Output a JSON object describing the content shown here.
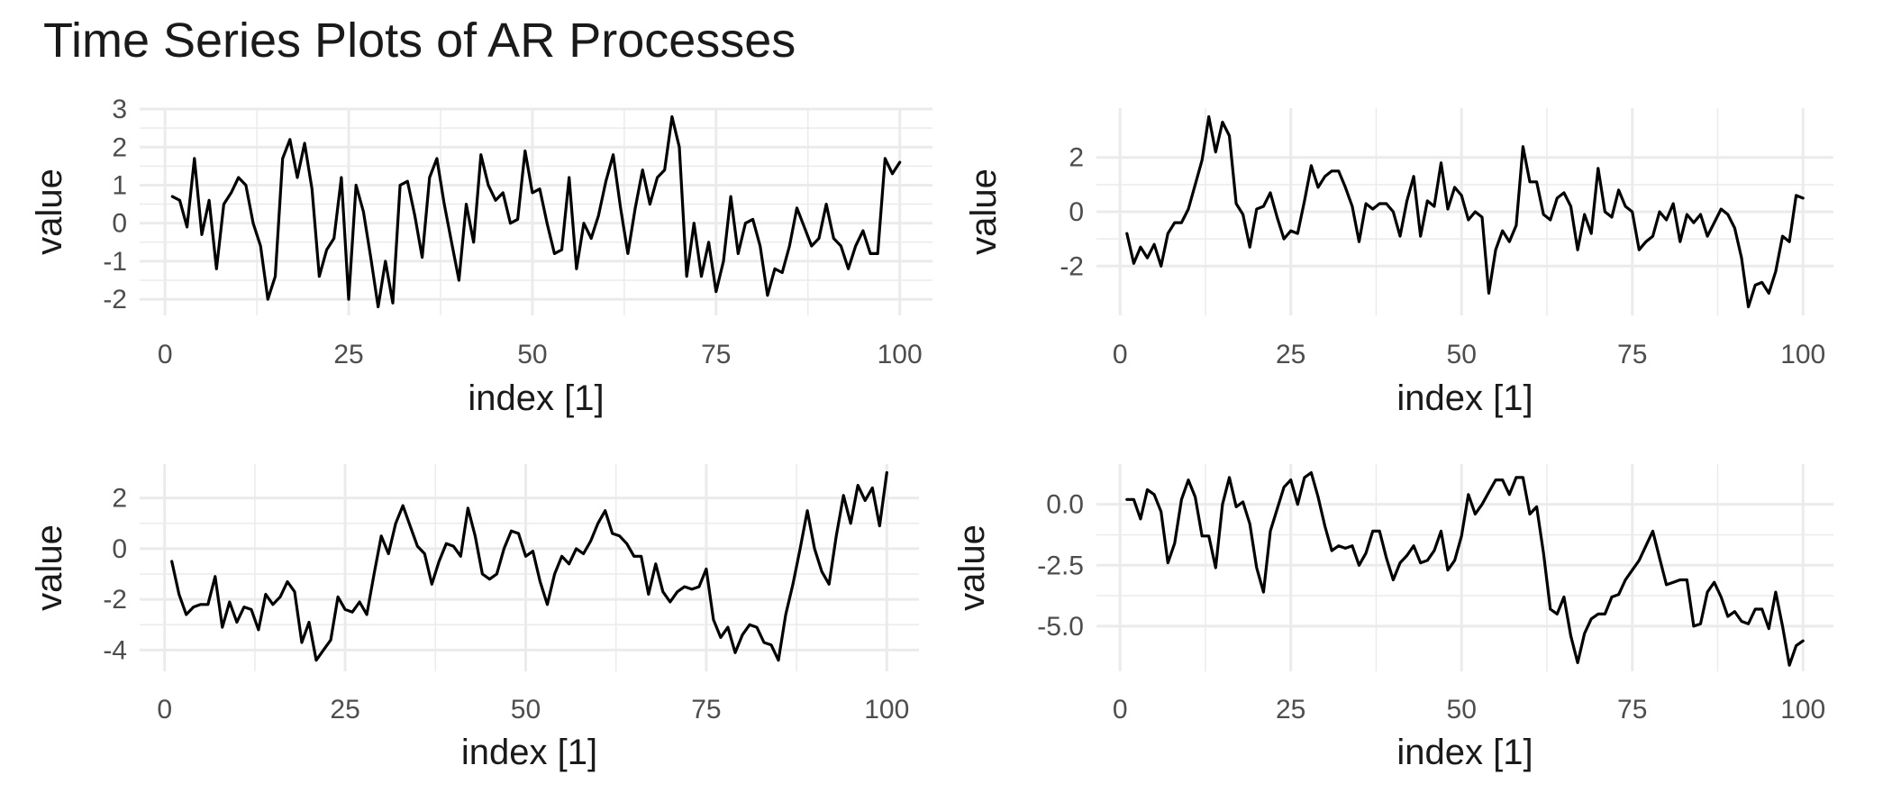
{
  "title": "Time Series Plots of AR Processes",
  "colors": {
    "line": "#000000",
    "grid": "#ebebeb",
    "text": "#4d4d4d",
    "background": "#ffffff"
  },
  "chart_data": [
    {
      "type": "line",
      "xlabel": "index [1]",
      "ylabel": "value",
      "xlim": [
        1,
        100
      ],
      "ylim": [
        -2.2,
        2.8
      ],
      "xticks": [
        0,
        25,
        50,
        75,
        100
      ],
      "yticks": [
        -2,
        -1,
        0,
        1,
        2,
        3
      ],
      "grid": true,
      "x": [
        1,
        2,
        3,
        4,
        5,
        6,
        7,
        8,
        9,
        10,
        11,
        12,
        13,
        14,
        15,
        16,
        17,
        18,
        19,
        20,
        21,
        22,
        23,
        24,
        25,
        26,
        27,
        28,
        29,
        30,
        31,
        32,
        33,
        34,
        35,
        36,
        37,
        38,
        39,
        40,
        41,
        42,
        43,
        44,
        45,
        46,
        47,
        48,
        49,
        50,
        51,
        52,
        53,
        54,
        55,
        56,
        57,
        58,
        59,
        60,
        61,
        62,
        63,
        64,
        65,
        66,
        67,
        68,
        69,
        70,
        71,
        72,
        73,
        74,
        75,
        76,
        77,
        78,
        79,
        80,
        81,
        82,
        83,
        84,
        85,
        86,
        87,
        88,
        89,
        90,
        91,
        92,
        93,
        94,
        95,
        96,
        97,
        98,
        99,
        100
      ],
      "y": [
        0.7,
        0.6,
        -0.1,
        1.7,
        -0.3,
        0.6,
        -1.2,
        0.5,
        0.8,
        1.2,
        1.0,
        0.0,
        -0.6,
        -2.0,
        -1.4,
        1.7,
        2.2,
        1.2,
        2.1,
        0.9,
        -1.4,
        -0.7,
        -0.4,
        1.2,
        -2.0,
        1.0,
        0.3,
        -0.9,
        -2.2,
        -1.0,
        -2.1,
        1.0,
        1.1,
        0.2,
        -0.9,
        1.2,
        1.7,
        0.5,
        -0.5,
        -1.5,
        0.5,
        -0.5,
        1.8,
        1.0,
        0.6,
        0.8,
        0.0,
        0.1,
        1.9,
        0.8,
        0.9,
        0.0,
        -0.8,
        -0.7,
        1.2,
        -1.2,
        0.0,
        -0.4,
        0.2,
        1.1,
        1.8,
        0.4,
        -0.8,
        0.4,
        1.4,
        0.5,
        1.2,
        1.4,
        2.8,
        2.0,
        -1.4,
        0.0,
        -1.4,
        -0.5,
        -1.8,
        -1.0,
        0.7,
        -0.8,
        0.0,
        0.1,
        -0.6,
        -1.9,
        -1.2,
        -1.3,
        -0.6,
        0.4,
        -0.1,
        -0.6,
        -0.4,
        0.5,
        -0.4,
        -0.6,
        -1.2,
        -0.6,
        -0.2,
        -0.8,
        -0.8,
        1.7,
        1.3,
        1.6
      ]
    },
    {
      "type": "line",
      "xlabel": "index [1]",
      "ylabel": "value",
      "xlim": [
        1,
        100
      ],
      "ylim": [
        -3.5,
        3.5
      ],
      "xticks": [
        0,
        25,
        50,
        75,
        100
      ],
      "yticks": [
        -2,
        0,
        2
      ],
      "grid": true,
      "x": [
        1,
        2,
        3,
        4,
        5,
        6,
        7,
        8,
        9,
        10,
        11,
        12,
        13,
        14,
        15,
        16,
        17,
        18,
        19,
        20,
        21,
        22,
        23,
        24,
        25,
        26,
        27,
        28,
        29,
        30,
        31,
        32,
        33,
        34,
        35,
        36,
        37,
        38,
        39,
        40,
        41,
        42,
        43,
        44,
        45,
        46,
        47,
        48,
        49,
        50,
        51,
        52,
        53,
        54,
        55,
        56,
        57,
        58,
        59,
        60,
        61,
        62,
        63,
        64,
        65,
        66,
        67,
        68,
        69,
        70,
        71,
        72,
        73,
        74,
        75,
        76,
        77,
        78,
        79,
        80,
        81,
        82,
        83,
        84,
        85,
        86,
        87,
        88,
        89,
        90,
        91,
        92,
        93,
        94,
        95,
        96,
        97,
        98,
        99,
        100
      ],
      "y": [
        -0.8,
        -1.9,
        -1.3,
        -1.7,
        -1.2,
        -2.0,
        -0.8,
        -0.4,
        -0.4,
        0.1,
        1.0,
        1.9,
        3.5,
        2.2,
        3.3,
        2.8,
        0.3,
        -0.1,
        -1.3,
        0.1,
        0.2,
        0.7,
        -0.2,
        -1.0,
        -0.7,
        -0.8,
        0.4,
        1.7,
        0.9,
        1.3,
        1.5,
        1.5,
        0.9,
        0.2,
        -1.1,
        0.3,
        0.1,
        0.3,
        0.3,
        0.0,
        -0.9,
        0.4,
        1.3,
        -0.9,
        0.4,
        0.2,
        1.8,
        0.1,
        0.9,
        0.6,
        -0.3,
        0.0,
        -0.2,
        -3.0,
        -1.4,
        -0.7,
        -1.1,
        -0.5,
        2.4,
        1.1,
        1.1,
        -0.1,
        -0.3,
        0.5,
        0.7,
        0.2,
        -1.4,
        -0.1,
        -0.8,
        1.6,
        0.0,
        -0.2,
        0.8,
        0.2,
        0.0,
        -1.4,
        -1.1,
        -0.9,
        0.0,
        -0.3,
        0.3,
        -1.1,
        -0.1,
        -0.4,
        -0.1,
        -0.9,
        -0.4,
        0.1,
        -0.1,
        -0.6,
        -1.7,
        -3.5,
        -2.7,
        -2.6,
        -3.0,
        -2.2,
        -0.9,
        -1.1,
        0.6,
        0.5
      ]
    },
    {
      "type": "line",
      "xlabel": "index [1]",
      "ylabel": "value",
      "xlim": [
        1,
        100
      ],
      "ylim": [
        -4.5,
        3.0
      ],
      "xticks": [
        0,
        25,
        50,
        75,
        100
      ],
      "yticks": [
        -4,
        -2,
        0,
        2
      ],
      "grid": true,
      "x": [
        1,
        2,
        3,
        4,
        5,
        6,
        7,
        8,
        9,
        10,
        11,
        12,
        13,
        14,
        15,
        16,
        17,
        18,
        19,
        20,
        21,
        22,
        23,
        24,
        25,
        26,
        27,
        28,
        29,
        30,
        31,
        32,
        33,
        34,
        35,
        36,
        37,
        38,
        39,
        40,
        41,
        42,
        43,
        44,
        45,
        46,
        47,
        48,
        49,
        50,
        51,
        52,
        53,
        54,
        55,
        56,
        57,
        58,
        59,
        60,
        61,
        62,
        63,
        64,
        65,
        66,
        67,
        68,
        69,
        70,
        71,
        72,
        73,
        74,
        75,
        76,
        77,
        78,
        79,
        80,
        81,
        82,
        83,
        84,
        85,
        86,
        87,
        88,
        89,
        90,
        91,
        92,
        93,
        94,
        95,
        96,
        97,
        98,
        99,
        100
      ],
      "y": [
        -0.5,
        -1.8,
        -2.6,
        -2.3,
        -2.2,
        -2.2,
        -1.1,
        -3.1,
        -2.1,
        -2.9,
        -2.3,
        -2.4,
        -3.2,
        -1.8,
        -2.2,
        -1.9,
        -1.3,
        -1.7,
        -3.7,
        -2.9,
        -4.4,
        -4.0,
        -3.6,
        -1.9,
        -2.4,
        -2.5,
        -2.1,
        -2.6,
        -1.0,
        0.5,
        -0.2,
        1.0,
        1.7,
        0.9,
        0.1,
        -0.2,
        -1.4,
        -0.5,
        0.2,
        0.1,
        -0.3,
        1.6,
        0.5,
        -1.0,
        -1.2,
        -1.0,
        0.0,
        0.7,
        0.6,
        -0.3,
        -0.1,
        -1.3,
        -2.2,
        -1.0,
        -0.3,
        -0.6,
        0.0,
        -0.2,
        0.3,
        1.0,
        1.5,
        0.6,
        0.5,
        0.2,
        -0.3,
        -0.3,
        -1.8,
        -0.6,
        -1.7,
        -2.1,
        -1.7,
        -1.5,
        -1.6,
        -1.5,
        -0.8,
        -2.8,
        -3.5,
        -3.1,
        -4.1,
        -3.4,
        -3.0,
        -3.1,
        -3.7,
        -3.8,
        -4.4,
        -2.6,
        -1.4,
        0.0,
        1.5,
        0.0,
        -0.9,
        -1.4,
        0.5,
        2.1,
        1.0,
        2.5,
        1.9,
        2.4,
        0.9,
        3.0
      ]
    },
    {
      "type": "line",
      "xlabel": "index [1]",
      "ylabel": "value",
      "xlim": [
        1,
        100
      ],
      "ylim": [
        -6.5,
        1.3
      ],
      "xticks": [
        0,
        25,
        50,
        75,
        100
      ],
      "yticks": [
        -5.0,
        -2.5,
        0.0
      ],
      "grid": true,
      "x": [
        1,
        2,
        3,
        4,
        5,
        6,
        7,
        8,
        9,
        10,
        11,
        12,
        13,
        14,
        15,
        16,
        17,
        18,
        19,
        20,
        21,
        22,
        23,
        24,
        25,
        26,
        27,
        28,
        29,
        30,
        31,
        32,
        33,
        34,
        35,
        36,
        37,
        38,
        39,
        40,
        41,
        42,
        43,
        44,
        45,
        46,
        47,
        48,
        49,
        50,
        51,
        52,
        53,
        54,
        55,
        56,
        57,
        58,
        59,
        60,
        61,
        62,
        63,
        64,
        65,
        66,
        67,
        68,
        69,
        70,
        71,
        72,
        73,
        74,
        75,
        76,
        77,
        78,
        79,
        80,
        81,
        82,
        83,
        84,
        85,
        86,
        87,
        88,
        89,
        90,
        91,
        92,
        93,
        94,
        95,
        96,
        97,
        98,
        99,
        100
      ],
      "y": [
        0.2,
        0.2,
        -0.6,
        0.6,
        0.4,
        -0.3,
        -2.4,
        -1.6,
        0.2,
        1.0,
        0.3,
        -1.3,
        -1.3,
        -2.6,
        0.0,
        1.1,
        -0.1,
        0.1,
        -0.8,
        -2.6,
        -3.6,
        -1.1,
        -0.2,
        0.7,
        1.0,
        0.0,
        1.1,
        1.3,
        0.3,
        -0.9,
        -1.9,
        -1.7,
        -1.8,
        -1.7,
        -2.5,
        -2.0,
        -1.1,
        -1.1,
        -2.2,
        -3.1,
        -2.4,
        -2.1,
        -1.7,
        -2.4,
        -2.3,
        -1.9,
        -1.1,
        -2.7,
        -2.3,
        -1.3,
        0.4,
        -0.4,
        0.0,
        0.5,
        1.0,
        1.0,
        0.4,
        1.1,
        1.1,
        -0.4,
        -0.1,
        -2.0,
        -4.3,
        -4.5,
        -3.8,
        -5.4,
        -6.5,
        -5.3,
        -4.7,
        -4.5,
        -4.5,
        -3.8,
        -3.7,
        -3.1,
        -2.7,
        -2.3,
        -1.7,
        -1.1,
        -2.2,
        -3.3,
        -3.2,
        -3.1,
        -3.1,
        -5.0,
        -4.9,
        -3.6,
        -3.2,
        -3.8,
        -4.6,
        -4.4,
        -4.8,
        -4.9,
        -4.3,
        -4.3,
        -5.1,
        -3.6,
        -5.0,
        -6.6,
        -5.8,
        -5.6
      ]
    }
  ]
}
